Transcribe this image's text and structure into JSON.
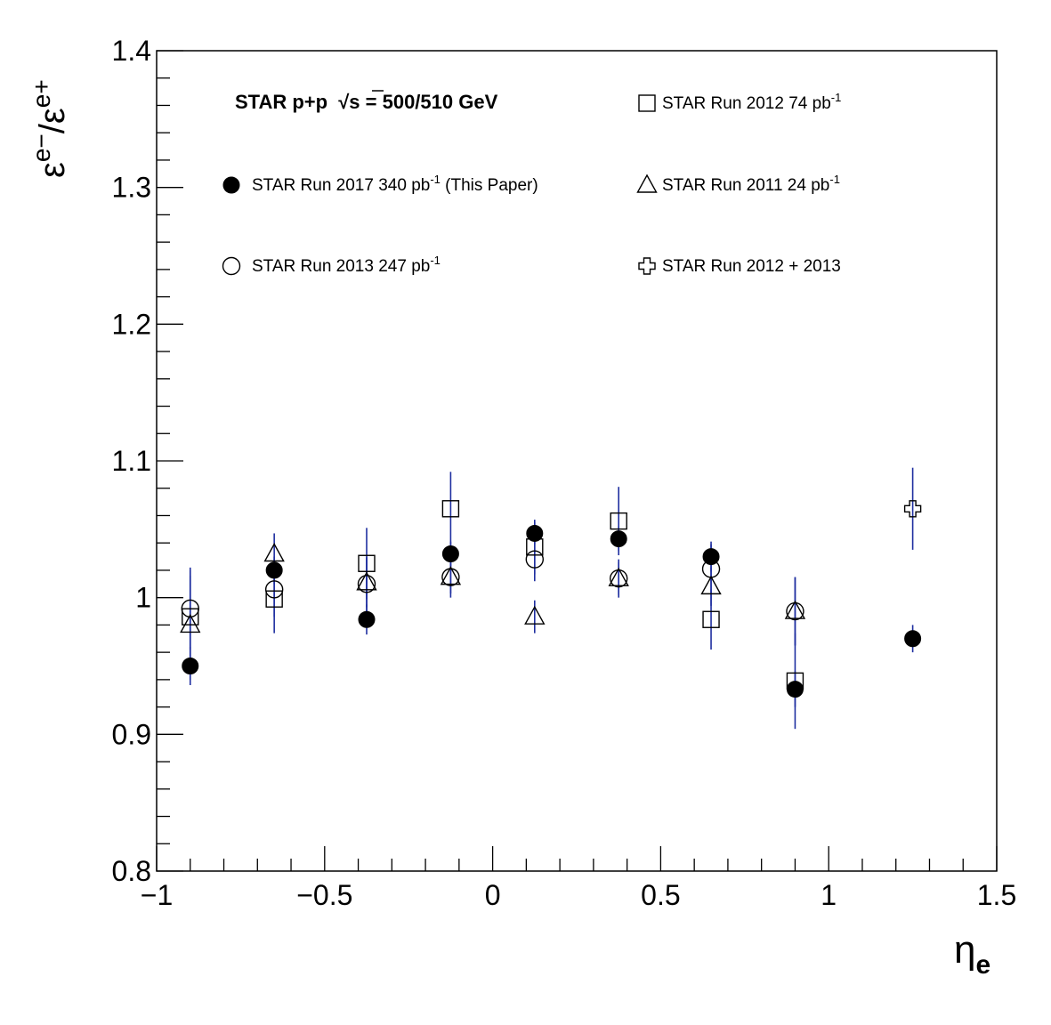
{
  "chart_data": {
    "type": "scatter",
    "header": {
      "prefix": "STAR p+p ",
      "root_symbol": "√",
      "rest": "s = 500/510 GeV"
    },
    "xlabel": {
      "main": "η",
      "sub": "e"
    },
    "ylabel": {
      "num": "ε",
      "num_sup": "e−",
      "slash": "/",
      "den": "ε",
      "den_sup": "e+"
    },
    "xlim": [
      -1,
      1.5
    ],
    "ylim": [
      0.8,
      1.4
    ],
    "xticks": [
      -1,
      -0.5,
      0,
      0.5,
      1,
      1.5
    ],
    "xtick_labels": [
      "−1",
      "−0.5",
      "0",
      "0.5",
      "1",
      "1.5"
    ],
    "yticks": [
      0.8,
      0.9,
      1,
      1.1,
      1.2,
      1.3,
      1.4
    ],
    "ytick_labels": [
      "0.8",
      "0.9",
      "1",
      "1.1",
      "1.2",
      "1.3",
      "1.4"
    ],
    "grid": false,
    "error_bar_color": "#1f2fa0",
    "series": [
      {
        "name": "STAR Run 2017 340 pb",
        "name_sup": "-1",
        "name_suffix": " (This Paper)",
        "marker": "filled-circle",
        "points": [
          {
            "x": -0.9,
            "y": 0.95,
            "err": 0.014
          },
          {
            "x": -0.65,
            "y": 1.02,
            "err": 0.01
          },
          {
            "x": -0.375,
            "y": 0.984,
            "err": 0.011
          },
          {
            "x": -0.125,
            "y": 1.032,
            "err": 0.009
          },
          {
            "x": 0.125,
            "y": 1.047,
            "err": 0.008
          },
          {
            "x": 0.375,
            "y": 1.043,
            "err": 0.009
          },
          {
            "x": 0.65,
            "y": 1.03,
            "err": 0.011
          },
          {
            "x": 0.9,
            "y": 0.933,
            "err": 0.013
          },
          {
            "x": 1.25,
            "y": 0.97,
            "err": 0.01
          }
        ]
      },
      {
        "name": "STAR Run 2013 247 pb",
        "name_sup": "-1",
        "name_suffix": "",
        "marker": "open-circle",
        "points": [
          {
            "x": -0.9,
            "y": 0.992,
            "err": 0.03
          },
          {
            "x": -0.65,
            "y": 1.006,
            "err": 0.02
          },
          {
            "x": -0.375,
            "y": 1.01,
            "err": 0.02
          },
          {
            "x": -0.125,
            "y": 1.015,
            "err": 0.015
          },
          {
            "x": 0.125,
            "y": 1.028,
            "err": 0.016
          },
          {
            "x": 0.375,
            "y": 1.014,
            "err": 0.014
          },
          {
            "x": 0.65,
            "y": 1.021,
            "err": 0.018
          },
          {
            "x": 0.9,
            "y": 0.99,
            "err": 0.025
          }
        ]
      },
      {
        "name": "STAR Run 2012 74 pb",
        "name_sup": "-1",
        "name_suffix": "",
        "marker": "open-square",
        "points": [
          {
            "x": -0.9,
            "y": 0.986,
            "err": 0.03
          },
          {
            "x": -0.65,
            "y": 0.999,
            "err": 0.025
          },
          {
            "x": -0.375,
            "y": 1.025,
            "err": 0.026
          },
          {
            "x": -0.125,
            "y": 1.065,
            "err": 0.027
          },
          {
            "x": 0.125,
            "y": 1.037,
            "err": 0.02
          },
          {
            "x": 0.375,
            "y": 1.056,
            "err": 0.025
          },
          {
            "x": 0.65,
            "y": 0.984,
            "err": 0.022
          },
          {
            "x": 0.9,
            "y": 0.939,
            "err": 0.035
          }
        ]
      },
      {
        "name": "STAR Run 2011 24 pb",
        "name_sup": "-1",
        "name_suffix": "",
        "marker": "open-triangle",
        "points": [
          {
            "x": -0.9,
            "y": 0.98,
            "err": 0.04
          },
          {
            "x": -0.65,
            "y": 1.032,
            "err": 0.015
          },
          {
            "x": -0.375,
            "y": 1.011,
            "err": 0.018
          },
          {
            "x": -0.125,
            "y": 1.015,
            "err": 0.012
          },
          {
            "x": 0.125,
            "y": 0.986,
            "err": 0.012
          },
          {
            "x": 0.375,
            "y": 1.014,
            "err": 0.012
          },
          {
            "x": 0.65,
            "y": 1.008,
            "err": 0.014
          },
          {
            "x": 0.9,
            "y": 0.99,
            "err": 0.025
          }
        ]
      },
      {
        "name": "STAR Run 2012 + 2013",
        "name_sup": "",
        "name_suffix": "",
        "marker": "open-cross",
        "points": [
          {
            "x": 1.25,
            "y": 1.065,
            "err": 0.03
          }
        ]
      }
    ],
    "legend_order": [
      0,
      1,
      2,
      3,
      4
    ]
  }
}
